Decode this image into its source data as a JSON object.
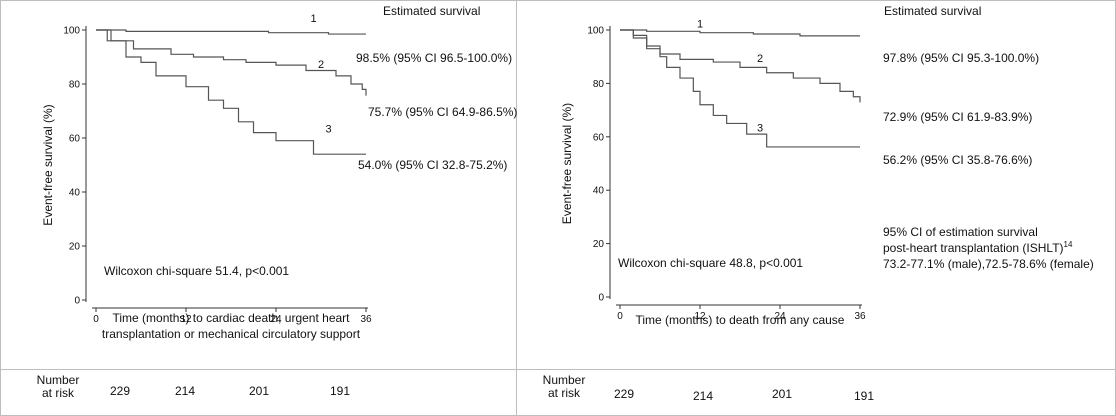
{
  "chart_data": [
    {
      "type": "line",
      "step": true,
      "ylabel": "Event-free survival (%)",
      "xlabel_lines": [
        "Time (months) to cardiac death, urgent heart",
        "transplantation or mechanical circulatory support"
      ],
      "xlim": [
        0,
        36
      ],
      "ylim": [
        0,
        100
      ],
      "xticks": [
        "0",
        "12",
        "24",
        "36"
      ],
      "yticks": [
        "0",
        "20",
        "40",
        "60",
        "80",
        "100"
      ],
      "annotation_title": "Estimated survival",
      "annotation": "Wilcoxon chi-square  51.4, p<0.001",
      "series": [
        {
          "name": "1",
          "estimate": "98.5% (95% CI 96.5-100.0%)",
          "x": [
            0,
            4,
            23,
            31,
            36
          ],
          "y": [
            100,
            99.5,
            99,
            98.5,
            98.5
          ]
        },
        {
          "name": "2",
          "estimate": "75.7% (95% CI 64.9-86.5%)",
          "x": [
            0,
            2,
            5,
            10,
            13,
            17,
            20,
            24,
            28,
            32,
            34,
            35.5,
            36
          ],
          "y": [
            100,
            96,
            93,
            91,
            90,
            89,
            88,
            87,
            85,
            83,
            80,
            78,
            75.7
          ]
        },
        {
          "name": "3",
          "estimate": "54.0% (95% CI 32.8-75.2%)",
          "x": [
            0,
            1.5,
            4,
            6,
            8,
            12,
            15,
            17,
            19,
            21,
            24,
            29,
            36
          ],
          "y": [
            100,
            96,
            90,
            88,
            83,
            79,
            74,
            71,
            66,
            62,
            59,
            54,
            54
          ]
        }
      ]
    },
    {
      "type": "line",
      "step": true,
      "ylabel": "Event-free survival (%)",
      "xlabel_lines": [
        "Time (months) to death from any cause"
      ],
      "xlim": [
        0,
        36
      ],
      "ylim": [
        0,
        100
      ],
      "xticks": [
        "0",
        "12",
        "24",
        "36"
      ],
      "yticks": [
        "0",
        "20",
        "40",
        "60",
        "80",
        "100"
      ],
      "annotation_title": "Estimated survival",
      "annotation": "Wilcoxon chi-square  48.8, p<0.001",
      "ishlt_lines": [
        "95% CI of estimation survival",
        "post-heart transplantation (ISHLT)",
        "73.2-77.1% (male),72.5-78.6% (female)"
      ],
      "ishlt_superscript": "14",
      "series": [
        {
          "name": "1",
          "estimate": "97.8% (95% CI 95.3-100.0%)",
          "x": [
            0,
            4,
            12,
            20,
            27,
            36
          ],
          "y": [
            100,
            99.5,
            99,
            98.5,
            97.8,
            97.8
          ]
        },
        {
          "name": "2",
          "estimate": "72.9% (95% CI 61.9-83.9%)",
          "x": [
            0,
            2,
            4,
            6,
            9,
            14,
            18,
            22,
            26,
            30,
            33,
            35,
            36
          ],
          "y": [
            100,
            98,
            93,
            91,
            89,
            88,
            86,
            84,
            82,
            80,
            77,
            75,
            72.9
          ]
        },
        {
          "name": "3",
          "estimate": "56.2% (95% CI 35.8-76.6%)",
          "x": [
            0,
            2,
            4,
            6,
            7,
            9,
            11,
            12,
            14,
            16,
            19,
            22,
            36
          ],
          "y": [
            100,
            97,
            94,
            90,
            86,
            82,
            77,
            72,
            68,
            65,
            61,
            56.2,
            56.2
          ]
        }
      ]
    }
  ],
  "risk_table": {
    "header_line1": "Number",
    "header_line2": "at risk",
    "left_values": [
      "229",
      "214",
      "201",
      "191"
    ],
    "right_values": [
      "229",
      "214",
      "201",
      "191"
    ]
  },
  "colors": {
    "line": "#555555",
    "axis": "#333333",
    "border": "#bdbdbd"
  }
}
